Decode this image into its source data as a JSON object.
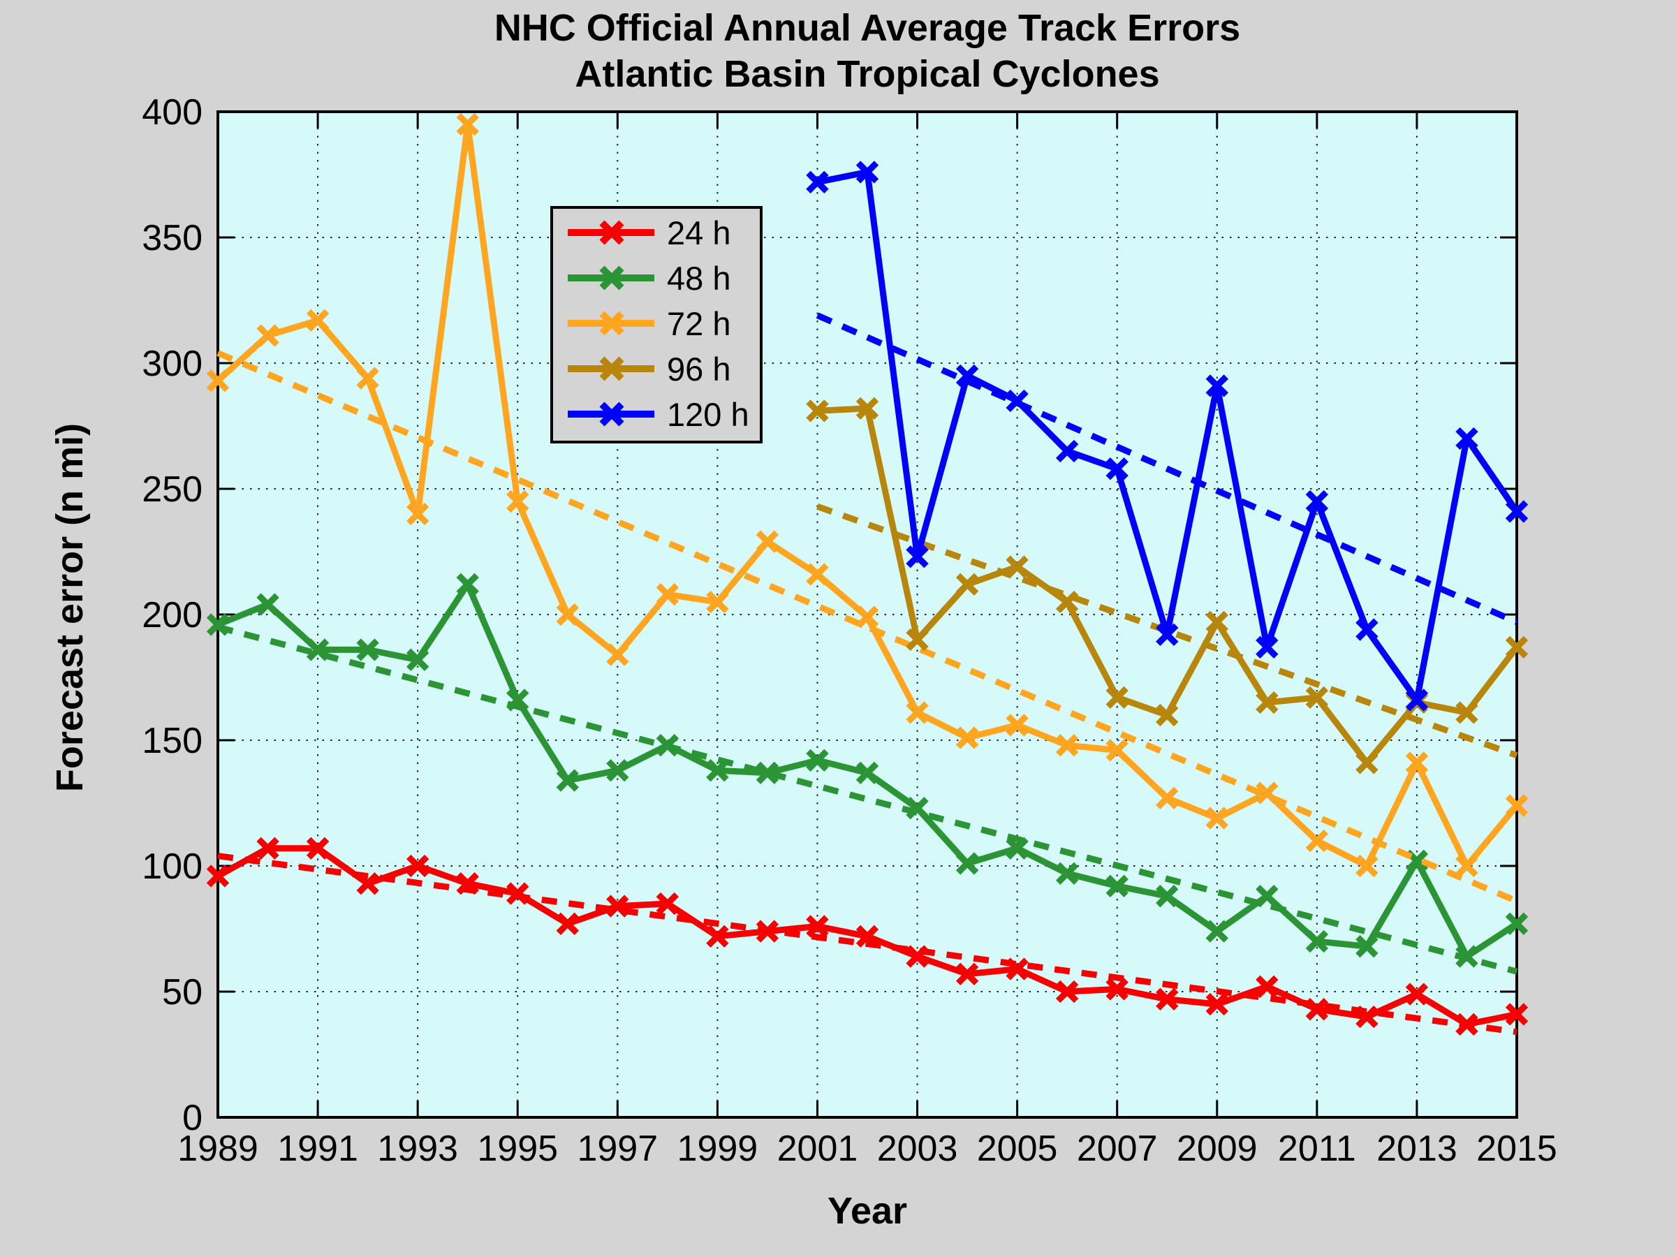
{
  "title": {
    "line1": "NHC Official Annual Average Track Errors",
    "line2": "Atlantic Basin Tropical Cyclones"
  },
  "colors": {
    "figure_bg": "#D4D4D4",
    "plot_bg": "#D6FAFA",
    "axis": "#000000",
    "grid": "#222222",
    "red": "#F80000",
    "green": "#2B9434",
    "orange": "#FFA51F",
    "gold": "#B8860B",
    "blue": "#0000FF"
  },
  "legend": {
    "items": [
      {
        "label": "24 h",
        "color_key": "red"
      },
      {
        "label": "48 h",
        "color_key": "green"
      },
      {
        "label": "72 h",
        "color_key": "orange"
      },
      {
        "label": "96 h",
        "color_key": "gold"
      },
      {
        "label": "120 h",
        "color_key": "blue"
      }
    ]
  },
  "chart_data": {
    "type": "line",
    "title": "NHC Official Annual Average Track Errors - Atlantic Basin Tropical Cyclones",
    "xlabel": "Year",
    "ylabel": "Forecast error (n mi)",
    "xlim": [
      1989,
      2015
    ],
    "ylim": [
      0,
      400
    ],
    "xticks": [
      1989,
      1991,
      1993,
      1995,
      1997,
      1999,
      2001,
      2003,
      2005,
      2007,
      2009,
      2011,
      2013,
      2015
    ],
    "yticks": [
      0,
      50,
      100,
      150,
      200,
      250,
      300,
      350,
      400
    ],
    "grid": true,
    "grid_style": "dotted",
    "marker": "x",
    "legend_position": "upper-left-inside",
    "series": [
      {
        "name": "24 h",
        "color_key": "red",
        "x": [
          1989,
          1990,
          1991,
          1992,
          1993,
          1994,
          1995,
          1996,
          1997,
          1998,
          1999,
          2000,
          2001,
          2002,
          2003,
          2004,
          2005,
          2006,
          2007,
          2008,
          2009,
          2010,
          2011,
          2012,
          2013,
          2014,
          2015
        ],
        "values": [
          96,
          107,
          107,
          93,
          100,
          93,
          89,
          77,
          84,
          85,
          72,
          74,
          76,
          72,
          64,
          57,
          59,
          50,
          51,
          47,
          45,
          52,
          43,
          40,
          49,
          37,
          41
        ],
        "trend": {
          "x": [
            1989,
            2015
          ],
          "y": [
            104,
            34
          ]
        }
      },
      {
        "name": "48 h",
        "color_key": "green",
        "x": [
          1989,
          1990,
          1991,
          1992,
          1993,
          1994,
          1995,
          1996,
          1997,
          1998,
          1999,
          2000,
          2001,
          2002,
          2003,
          2004,
          2005,
          2006,
          2007,
          2008,
          2009,
          2010,
          2011,
          2012,
          2013,
          2014,
          2015
        ],
        "values": [
          196,
          204,
          186,
          186,
          182,
          212,
          166,
          134,
          138,
          148,
          138,
          137,
          142,
          137,
          123,
          101,
          107,
          97,
          92,
          88,
          74,
          88,
          70,
          68,
          102,
          64,
          77
        ],
        "trend": {
          "x": [
            1989,
            2015
          ],
          "y": [
            195,
            58
          ]
        }
      },
      {
        "name": "72 h",
        "color_key": "orange",
        "x": [
          1989,
          1990,
          1991,
          1992,
          1993,
          1994,
          1995,
          1996,
          1997,
          1998,
          1999,
          2000,
          2001,
          2002,
          2003,
          2004,
          2005,
          2006,
          2007,
          2008,
          2009,
          2010,
          2011,
          2012,
          2013,
          2014,
          2015
        ],
        "values": [
          293,
          311,
          317,
          294,
          240,
          395,
          245,
          200,
          184,
          208,
          205,
          229,
          216,
          199,
          161,
          151,
          156,
          148,
          146,
          127,
          119,
          129,
          110,
          100,
          141,
          100,
          124
        ],
        "trend": {
          "x": [
            1989,
            2015
          ],
          "y": [
            304,
            86
          ]
        }
      },
      {
        "name": "96 h",
        "color_key": "gold",
        "x": [
          2001,
          2002,
          2003,
          2004,
          2005,
          2006,
          2007,
          2008,
          2009,
          2010,
          2011,
          2012,
          2013,
          2014,
          2015
        ],
        "values": [
          281,
          282,
          190,
          212,
          219,
          205,
          167,
          160,
          197,
          165,
          167,
          141,
          165,
          161,
          187
        ],
        "trend": {
          "x": [
            2001,
            2015
          ],
          "y": [
            243,
            144
          ]
        }
      },
      {
        "name": "120 h",
        "color_key": "blue",
        "x": [
          2001,
          2002,
          2003,
          2004,
          2005,
          2006,
          2007,
          2008,
          2009,
          2010,
          2011,
          2012,
          2013,
          2014,
          2015
        ],
        "values": [
          372,
          376,
          223,
          295,
          285,
          265,
          258,
          192,
          291,
          187,
          245,
          194,
          166,
          270,
          241
        ],
        "trend": {
          "x": [
            2001,
            2015
          ],
          "y": [
            319,
            197
          ]
        }
      }
    ]
  }
}
